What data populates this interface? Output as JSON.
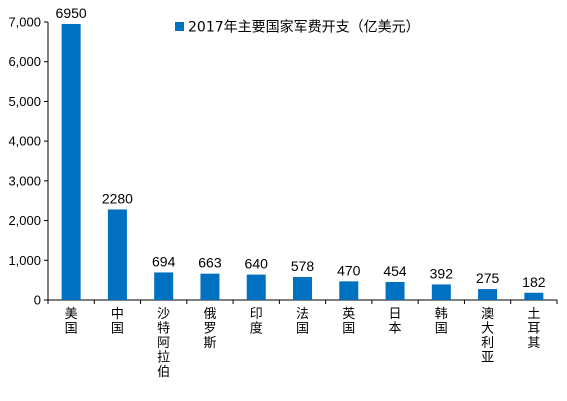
{
  "chart_data": {
    "type": "bar",
    "categories": [
      "美国",
      "中国",
      "沙特阿拉伯",
      "俄罗斯",
      "印度",
      "法国",
      "英国",
      "日本",
      "韩国",
      "澳大利亚",
      "土耳其"
    ],
    "series": [
      {
        "name": "2017年主要国家军费开支（亿美元）",
        "values": [
          6950,
          2280,
          694,
          663,
          640,
          578,
          470,
          454,
          392,
          275,
          182
        ],
        "color": "#0070C0"
      }
    ],
    "yticks": [
      "0",
      "1,000",
      "2,000",
      "3,000",
      "4,000",
      "5,000",
      "6,000",
      "7,000"
    ],
    "ylim": [
      0,
      7000
    ],
    "grid": false,
    "legend_position": "top"
  }
}
